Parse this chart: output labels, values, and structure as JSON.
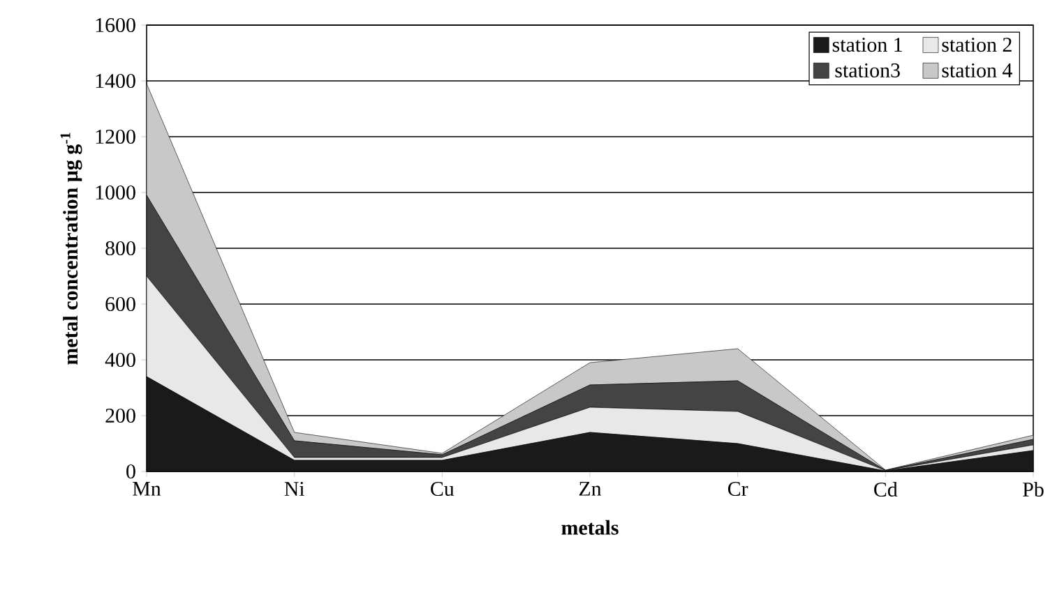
{
  "chart_data": {
    "type": "area",
    "stacked": true,
    "xlabel": "metals",
    "ylabel": "metal concentration µg g$^{-1}$",
    "categories": [
      "Mn",
      "Ni",
      "Cu",
      "Zn",
      "Cr",
      "Cd",
      "Pb"
    ],
    "series": [
      {
        "name": "station 1",
        "color": "#1a1a1a",
        "values": [
          340,
          40,
          40,
          140,
          100,
          2,
          75
        ]
      },
      {
        "name": "station 2",
        "color": "#e8e8e8",
        "values": [
          360,
          10,
          10,
          90,
          115,
          1,
          20
        ]
      },
      {
        "name": "station3",
        "color": "#444444",
        "values": [
          290,
          60,
          10,
          80,
          110,
          1,
          20
        ]
      },
      {
        "name": "station 4",
        "color": "#c8c8c8",
        "values": [
          400,
          30,
          5,
          80,
          115,
          1,
          15
        ]
      }
    ],
    "ylim": [
      0,
      1600
    ],
    "yticks": [
      0,
      200,
      400,
      600,
      800,
      1000,
      1200,
      1400,
      1600
    ],
    "grid": "y",
    "legend": "top right"
  }
}
